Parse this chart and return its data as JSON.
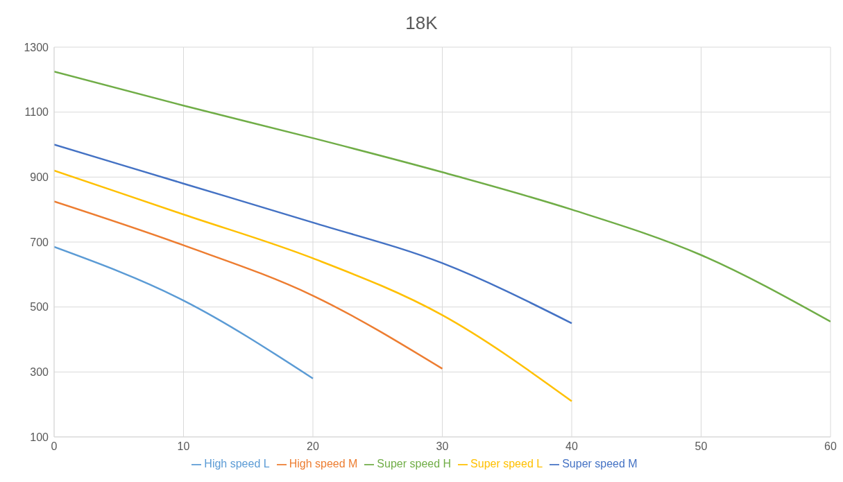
{
  "chart_data": {
    "type": "line",
    "title": "18K",
    "x": [
      0,
      10,
      20,
      30,
      40,
      50,
      60
    ],
    "series": [
      {
        "name": "High speed L",
        "color": "#5b9bd5",
        "values": [
          685,
          520,
          280,
          null,
          null,
          null,
          null
        ]
      },
      {
        "name": "High speed M",
        "color": "#ed7d31",
        "values": [
          825,
          690,
          535,
          310,
          null,
          null,
          null
        ]
      },
      {
        "name": "Super speed L",
        "color": "#ffc000",
        "values": [
          920,
          785,
          650,
          475,
          210,
          null,
          null
        ]
      },
      {
        "name": "Super speed M",
        "color": "#4472c4",
        "values": [
          1000,
          880,
          760,
          635,
          450,
          null,
          null
        ]
      },
      {
        "name": "Super speed H",
        "color": "#70ad47",
        "values": [
          1225,
          1120,
          1020,
          915,
          800,
          660,
          455
        ]
      }
    ],
    "xlim": [
      0,
      60
    ],
    "xticks": [
      0,
      10,
      20,
      30,
      40,
      50,
      60
    ],
    "ylim": [
      100,
      1300
    ],
    "yticks": [
      100,
      300,
      500,
      700,
      900,
      1100,
      1300
    ],
    "grid": true,
    "legend": "bottom",
    "marker": "none",
    "line_style": "solid"
  }
}
